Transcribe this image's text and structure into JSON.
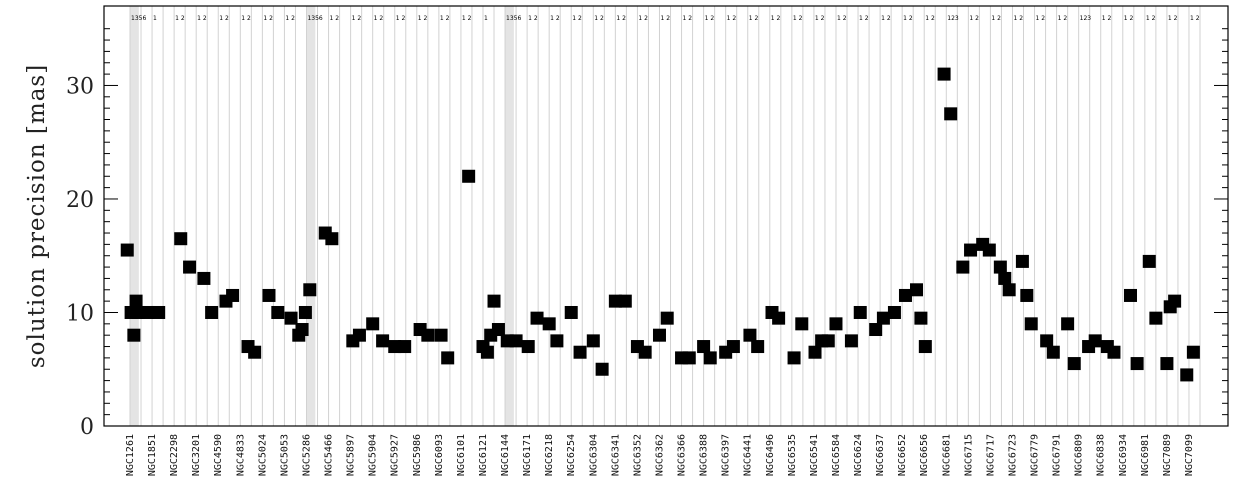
{
  "chart_data": {
    "type": "scatter",
    "ylabel": "solution precision [mas]",
    "xlabel": "",
    "ylim": [
      0,
      37
    ],
    "yticks": [
      0,
      10,
      20,
      30
    ],
    "categories": [
      "NGC1261",
      "NGC1851",
      "NGC2298",
      "NGC3201",
      "NGC4590",
      "NGC4833",
      "NGC5024",
      "NGC5053",
      "NGC5286",
      "NGC5466",
      "NGC5897",
      "NGC5904",
      "NGC5927",
      "NGC5986",
      "NGC6093",
      "NGC6101",
      "NGC6121",
      "NGC6144",
      "NGC6171",
      "NGC6218",
      "NGC6254",
      "NGC6304",
      "NGC6341",
      "NGC6352",
      "NGC6362",
      "NGC6366",
      "NGC6388",
      "NGC6397",
      "NGC6441",
      "NGC6496",
      "NGC6535",
      "NGC6541",
      "NGC6584",
      "NGC6624",
      "NGC6637",
      "NGC6652",
      "NGC6656",
      "NGC6681",
      "NGC6715",
      "NGC6717",
      "NGC6723",
      "NGC6779",
      "NGC6791",
      "NGC6809",
      "NGC6838",
      "NGC6934",
      "NGC6981",
      "NGC7089",
      "NGC7099"
    ],
    "slot_headers": [
      "1356",
      "",
      "1",
      "",
      "1 2",
      "",
      "1 2",
      "",
      "1 2",
      "",
      "1 2",
      "",
      "1 2",
      "",
      "1 2",
      "",
      "1356",
      "",
      "1 2",
      "",
      "1 2",
      "",
      "1 2",
      "",
      "1 2",
      "",
      "1 2",
      "",
      "1 2",
      "",
      "1 2",
      "",
      "1",
      "",
      "1356",
      "",
      "1 2",
      "",
      "1 2",
      "",
      "1 2",
      "",
      "1 2",
      "",
      "1 2",
      "",
      "1 2",
      "",
      "1 2",
      "",
      "1 2",
      "",
      "1 2",
      "",
      "1 2",
      "",
      "1 2",
      "",
      "1 2",
      "",
      "1 2",
      "",
      "1 2",
      "",
      "1 2",
      "",
      "1 2",
      "",
      "1 2",
      "",
      "1 2",
      "",
      "1 2",
      "",
      "123",
      "",
      "1 2",
      "",
      "1 2",
      "",
      "1 2",
      "",
      "1 2",
      "",
      "1 2",
      "",
      "123",
      "",
      "1 2",
      "",
      "1 2",
      "",
      "1 2",
      "",
      "1 2",
      "",
      "1 2",
      "",
      "1 2",
      "",
      "1 2",
      "",
      "123",
      "",
      "1 2"
    ],
    "slot_range": [
      0,
      97
    ],
    "highlight_slots": [
      [
        0,
        0.8
      ],
      [
        16,
        16.8
      ],
      [
        34,
        34.8
      ]
    ],
    "points": [
      {
        "x": -0.25,
        "y": 15.5
      },
      {
        "x": 0.1,
        "y": 10.0
      },
      {
        "x": 0.35,
        "y": 8.0
      },
      {
        "x": 0.55,
        "y": 11.0
      },
      {
        "x": 0.75,
        "y": 10.0
      },
      {
        "x": 1.6,
        "y": 10.0
      },
      {
        "x": 2.6,
        "y": 10.0
      },
      {
        "x": 4.6,
        "y": 16.5
      },
      {
        "x": 5.4,
        "y": 14.0
      },
      {
        "x": 6.7,
        "y": 13.0
      },
      {
        "x": 7.4,
        "y": 10.0
      },
      {
        "x": 8.7,
        "y": 11.0
      },
      {
        "x": 9.3,
        "y": 11.5
      },
      {
        "x": 10.7,
        "y": 7.0
      },
      {
        "x": 11.3,
        "y": 6.5
      },
      {
        "x": 12.6,
        "y": 11.5
      },
      {
        "x": 13.4,
        "y": 10.0
      },
      {
        "x": 14.6,
        "y": 9.5
      },
      {
        "x": 15.3,
        "y": 8.0
      },
      {
        "x": 15.6,
        "y": 8.5
      },
      {
        "x": 15.9,
        "y": 10.0
      },
      {
        "x": 16.3,
        "y": 12.0
      },
      {
        "x": 17.7,
        "y": 17.0
      },
      {
        "x": 18.3,
        "y": 16.5
      },
      {
        "x": 20.2,
        "y": 7.5
      },
      {
        "x": 20.8,
        "y": 8.0
      },
      {
        "x": 22.0,
        "y": 9.0
      },
      {
        "x": 22.9,
        "y": 7.5
      },
      {
        "x": 24.0,
        "y": 7.0
      },
      {
        "x": 24.9,
        "y": 7.0
      },
      {
        "x": 26.3,
        "y": 8.5
      },
      {
        "x": 27.0,
        "y": 8.0
      },
      {
        "x": 28.2,
        "y": 8.0
      },
      {
        "x": 28.8,
        "y": 6.0
      },
      {
        "x": 30.7,
        "y": 22.0
      },
      {
        "x": 32.0,
        "y": 7.0
      },
      {
        "x": 32.4,
        "y": 6.5
      },
      {
        "x": 32.7,
        "y": 8.0
      },
      {
        "x": 33.0,
        "y": 11.0
      },
      {
        "x": 33.4,
        "y": 8.5
      },
      {
        "x": 34.2,
        "y": 7.5
      },
      {
        "x": 35.0,
        "y": 7.5
      },
      {
        "x": 36.1,
        "y": 7.0
      },
      {
        "x": 36.9,
        "y": 9.5
      },
      {
        "x": 38.0,
        "y": 9.0
      },
      {
        "x": 38.7,
        "y": 7.5
      },
      {
        "x": 40.0,
        "y": 10.0
      },
      {
        "x": 40.8,
        "y": 6.5
      },
      {
        "x": 42.0,
        "y": 7.5
      },
      {
        "x": 42.8,
        "y": 5.0
      },
      {
        "x": 44.0,
        "y": 11.0
      },
      {
        "x": 44.9,
        "y": 11.0
      },
      {
        "x": 46.0,
        "y": 7.0
      },
      {
        "x": 46.7,
        "y": 6.5
      },
      {
        "x": 48.0,
        "y": 8.0
      },
      {
        "x": 48.7,
        "y": 9.5
      },
      {
        "x": 50.0,
        "y": 6.0
      },
      {
        "x": 50.7,
        "y": 6.0
      },
      {
        "x": 52.0,
        "y": 7.0
      },
      {
        "x": 52.6,
        "y": 6.0
      },
      {
        "x": 54.0,
        "y": 6.5
      },
      {
        "x": 54.7,
        "y": 7.0
      },
      {
        "x": 56.2,
        "y": 8.0
      },
      {
        "x": 56.9,
        "y": 7.0
      },
      {
        "x": 58.2,
        "y": 10.0
      },
      {
        "x": 58.8,
        "y": 9.5
      },
      {
        "x": 60.2,
        "y": 6.0
      },
      {
        "x": 60.9,
        "y": 9.0
      },
      {
        "x": 62.1,
        "y": 6.5
      },
      {
        "x": 62.7,
        "y": 7.5
      },
      {
        "x": 63.3,
        "y": 7.5
      },
      {
        "x": 64.0,
        "y": 9.0
      },
      {
        "x": 65.4,
        "y": 7.5
      },
      {
        "x": 66.2,
        "y": 10.0
      },
      {
        "x": 67.6,
        "y": 8.5
      },
      {
        "x": 68.3,
        "y": 9.5
      },
      {
        "x": 69.3,
        "y": 10.0
      },
      {
        "x": 70.3,
        "y": 11.5
      },
      {
        "x": 71.3,
        "y": 12.0
      },
      {
        "x": 71.7,
        "y": 9.5
      },
      {
        "x": 72.1,
        "y": 7.0
      },
      {
        "x": 73.8,
        "y": 31.0
      },
      {
        "x": 74.4,
        "y": 27.5
      },
      {
        "x": 75.5,
        "y": 14.0
      },
      {
        "x": 76.2,
        "y": 15.5
      },
      {
        "x": 77.3,
        "y": 16.0
      },
      {
        "x": 77.9,
        "y": 15.5
      },
      {
        "x": 78.9,
        "y": 14.0
      },
      {
        "x": 79.3,
        "y": 13.0
      },
      {
        "x": 79.7,
        "y": 12.0
      },
      {
        "x": 80.9,
        "y": 14.5
      },
      {
        "x": 81.3,
        "y": 11.5
      },
      {
        "x": 81.7,
        "y": 9.0
      },
      {
        "x": 83.1,
        "y": 7.5
      },
      {
        "x": 83.7,
        "y": 6.5
      },
      {
        "x": 85.0,
        "y": 9.0
      },
      {
        "x": 85.6,
        "y": 5.5
      },
      {
        "x": 86.9,
        "y": 7.0
      },
      {
        "x": 87.5,
        "y": 7.5
      },
      {
        "x": 88.6,
        "y": 7.0
      },
      {
        "x": 89.2,
        "y": 6.5
      },
      {
        "x": 90.7,
        "y": 11.5
      },
      {
        "x": 91.3,
        "y": 5.5
      },
      {
        "x": 92.4,
        "y": 14.5
      },
      {
        "x": 93.0,
        "y": 9.5
      },
      {
        "x": 94.0,
        "y": 5.5
      },
      {
        "x": 94.3,
        "y": 10.5
      },
      {
        "x": 94.7,
        "y": 11.0
      },
      {
        "x": 95.8,
        "y": 4.5
      },
      {
        "x": 96.4,
        "y": 6.5
      }
    ]
  }
}
